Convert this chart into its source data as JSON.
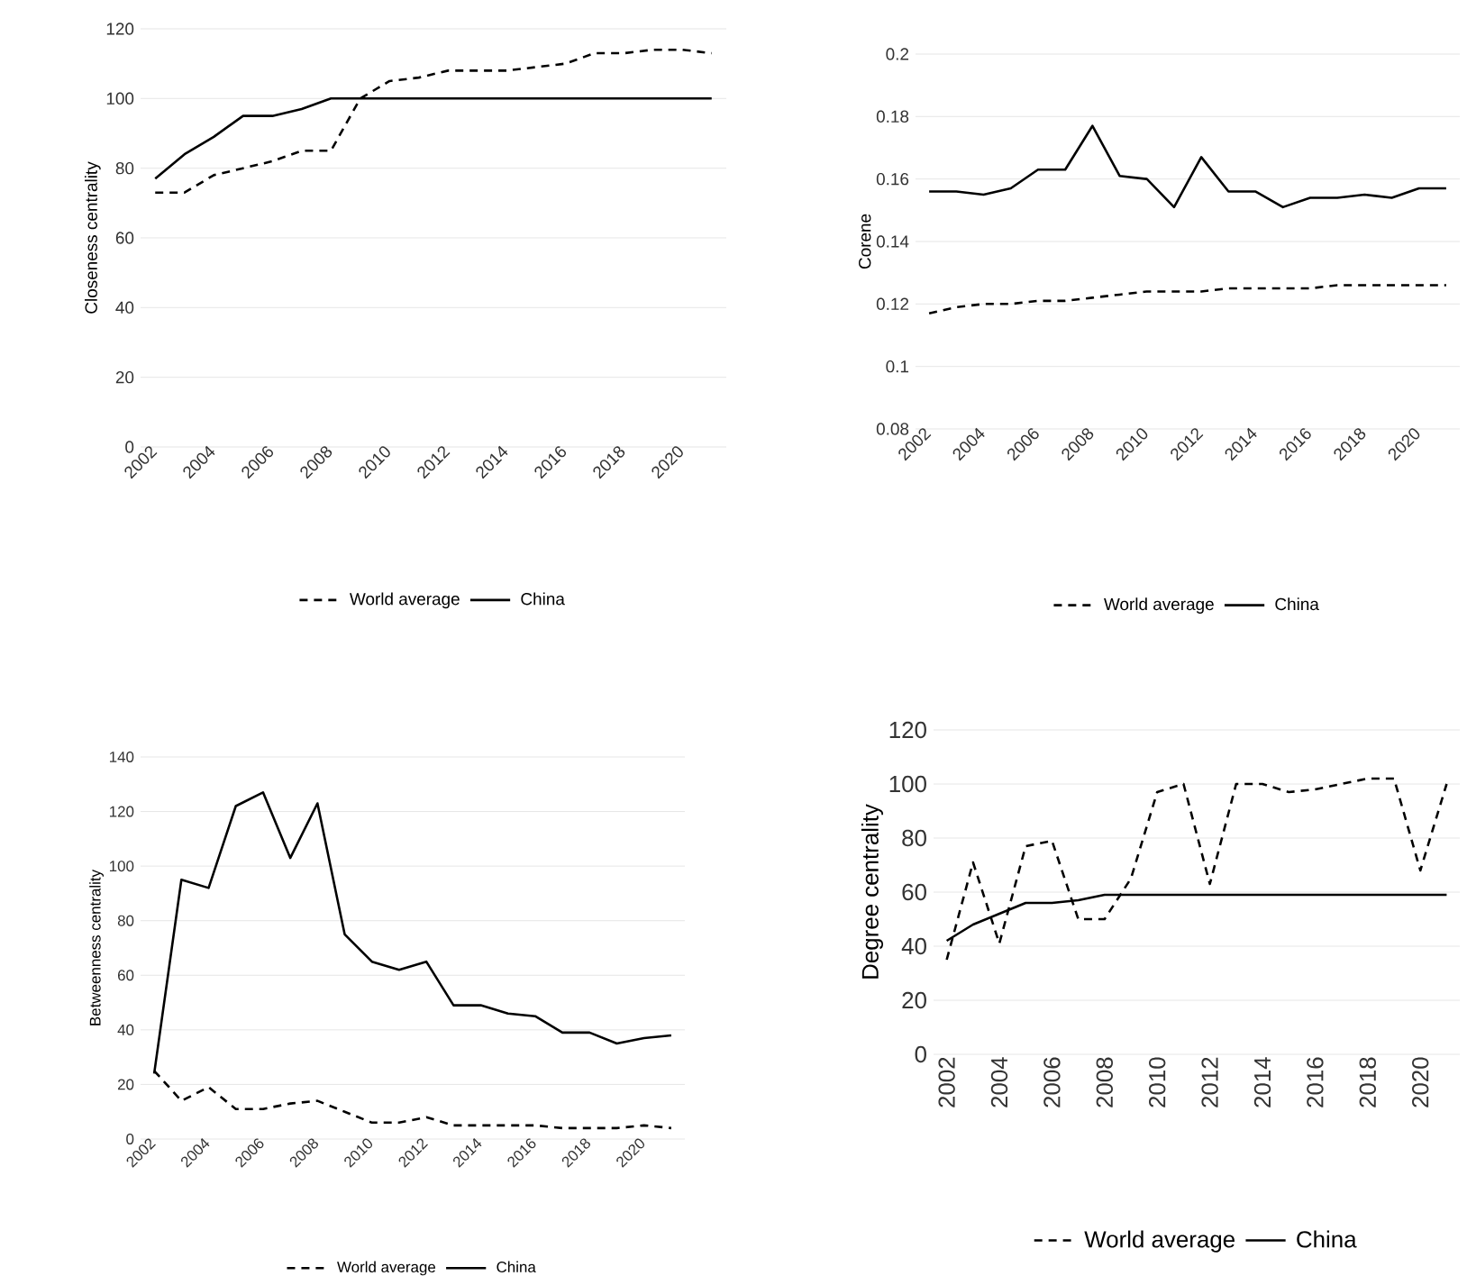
{
  "chart_data": [
    {
      "type": "line",
      "ylabel": "Closeness centrality",
      "categories": [
        "2002",
        null,
        "2004",
        null,
        "2006",
        null,
        "2008",
        null,
        "2010",
        null,
        "2012",
        null,
        "2014",
        null,
        "2016",
        null,
        "2018",
        null,
        "2020",
        null
      ],
      "ylim": [
        0,
        120
      ],
      "yticks": [
        0,
        20,
        40,
        60,
        80,
        100,
        120
      ],
      "grid": "y",
      "legend": "bottom",
      "series": [
        {
          "name": "World average",
          "color": "#000000",
          "line_style": "dashed",
          "values": [
            73,
            73,
            78,
            80,
            82,
            85,
            85,
            100,
            105,
            106,
            108,
            108,
            108,
            109,
            110,
            113,
            113,
            114,
            114,
            113
          ]
        },
        {
          "name": "China",
          "color": "#000000",
          "line_style": "solid",
          "values": [
            77,
            84,
            89,
            95,
            95,
            97,
            100,
            100,
            100,
            100,
            100,
            100,
            100,
            100,
            100,
            100,
            100,
            100,
            100,
            100
          ]
        }
      ]
    },
    {
      "type": "line",
      "ylabel": "Corene",
      "categories": [
        "2002",
        null,
        "2004",
        null,
        "2006",
        null,
        "2008",
        null,
        "2010",
        null,
        "2012",
        null,
        "2014",
        null,
        "2016",
        null,
        "2018",
        null,
        "2020",
        null
      ],
      "ylim": [
        0.08,
        0.2
      ],
      "yticks": [
        0.08,
        0.1,
        0.12,
        0.14,
        0.16,
        0.18,
        0.2
      ],
      "grid": "y",
      "legend": "bottom",
      "series": [
        {
          "name": "World average",
          "color": "#000000",
          "line_style": "dashed",
          "values": [
            0.117,
            0.119,
            0.12,
            0.12,
            0.121,
            0.121,
            0.122,
            0.123,
            0.124,
            0.124,
            0.124,
            0.125,
            0.125,
            0.125,
            0.125,
            0.126,
            0.126,
            0.126,
            0.126,
            0.126
          ]
        },
        {
          "name": "China",
          "color": "#000000",
          "line_style": "solid",
          "values": [
            0.156,
            0.156,
            0.155,
            0.157,
            0.163,
            0.163,
            0.177,
            0.161,
            0.16,
            0.151,
            0.167,
            0.156,
            0.156,
            0.151,
            0.154,
            0.154,
            0.155,
            0.154,
            0.157,
            0.157
          ]
        }
      ]
    },
    {
      "type": "line",
      "ylabel": "Betweenness centrality",
      "categories": [
        "2002",
        null,
        "2004",
        null,
        "2006",
        null,
        "2008",
        null,
        "2010",
        null,
        "2012",
        null,
        "2014",
        null,
        "2016",
        null,
        "2018",
        null,
        "2020",
        null
      ],
      "ylim": [
        0,
        140
      ],
      "yticks": [
        0,
        20,
        40,
        60,
        80,
        100,
        120,
        140
      ],
      "grid": "y",
      "legend": "bottom",
      "series": [
        {
          "name": "World average",
          "color": "#000000",
          "line_style": "dashed",
          "values": [
            25,
            14,
            19,
            11,
            11,
            13,
            14,
            10,
            6,
            6,
            8,
            5,
            5,
            5,
            5,
            4,
            4,
            4,
            5,
            4
          ]
        },
        {
          "name": "China",
          "color": "#000000",
          "line_style": "solid",
          "values": [
            24,
            95,
            92,
            122,
            127,
            103,
            123,
            75,
            65,
            62,
            65,
            49,
            49,
            46,
            45,
            39,
            39,
            35,
            37,
            38
          ]
        }
      ]
    },
    {
      "type": "line",
      "ylabel": "Degree centrality",
      "categories": [
        "2002",
        null,
        "2004",
        null,
        "2006",
        null,
        "2008",
        null,
        "2010",
        null,
        "2012",
        null,
        "2014",
        null,
        "2016",
        null,
        "2018",
        null,
        "2020",
        null
      ],
      "ylim": [
        0,
        120
      ],
      "yticks": [
        0,
        20,
        40,
        60,
        80,
        100,
        120
      ],
      "grid": "y",
      "legend": "bottom",
      "series": [
        {
          "name": "World average",
          "color": "#000000",
          "line_style": "dashed",
          "values": [
            35,
            71,
            41,
            77,
            79,
            50,
            50,
            65,
            97,
            100,
            63,
            100,
            100,
            97,
            98,
            100,
            102,
            102,
            68,
            100
          ]
        },
        {
          "name": "China",
          "color": "#000000",
          "line_style": "solid",
          "values": [
            42,
            48,
            52,
            56,
            56,
            57,
            59,
            59,
            59,
            59,
            59,
            59,
            59,
            59,
            59,
            59,
            59,
            59,
            59,
            59
          ]
        }
      ]
    }
  ]
}
